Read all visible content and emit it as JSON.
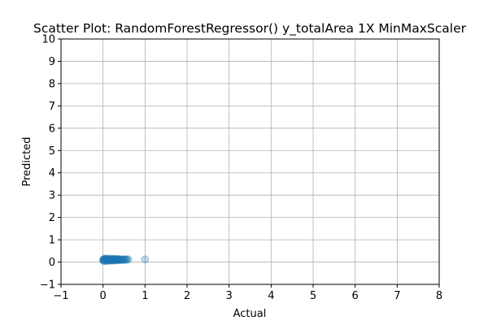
{
  "chart_data": {
    "type": "scatter",
    "title": "Scatter Plot: RandomForestRegressor() y_totalArea 1X MinMaxScaler",
    "xlabel": "Actual",
    "ylabel": "Predicted",
    "xlim": [
      -1,
      8
    ],
    "ylim": [
      -1,
      10
    ],
    "xticks": [
      -1,
      0,
      1,
      2,
      3,
      4,
      5,
      6,
      7,
      8
    ],
    "yticks": [
      -1,
      0,
      1,
      2,
      3,
      4,
      5,
      6,
      7,
      8,
      9,
      10
    ],
    "grid": true,
    "color": "#1f77b4",
    "alpha": 0.3,
    "points": [
      [
        0.0,
        0.08
      ],
      [
        0.01,
        0.1
      ],
      [
        0.02,
        0.12
      ],
      [
        0.03,
        0.09
      ],
      [
        0.04,
        0.11
      ],
      [
        0.05,
        0.1
      ],
      [
        0.06,
        0.13
      ],
      [
        0.07,
        0.09
      ],
      [
        0.08,
        0.12
      ],
      [
        0.09,
        0.1
      ],
      [
        0.1,
        0.11
      ],
      [
        0.11,
        0.09
      ],
      [
        0.12,
        0.12
      ],
      [
        0.13,
        0.1
      ],
      [
        0.14,
        0.11
      ],
      [
        0.15,
        0.09
      ],
      [
        0.16,
        0.12
      ],
      [
        0.17,
        0.1
      ],
      [
        0.18,
        0.11
      ],
      [
        0.19,
        0.1
      ],
      [
        0.2,
        0.12
      ],
      [
        0.21,
        0.09
      ],
      [
        0.22,
        0.11
      ],
      [
        0.23,
        0.1
      ],
      [
        0.24,
        0.12
      ],
      [
        0.25,
        0.1
      ],
      [
        0.26,
        0.11
      ],
      [
        0.27,
        0.09
      ],
      [
        0.28,
        0.12
      ],
      [
        0.29,
        0.1
      ],
      [
        0.3,
        0.11
      ],
      [
        0.31,
        0.1
      ],
      [
        0.32,
        0.12
      ],
      [
        0.33,
        0.1
      ],
      [
        0.34,
        0.11
      ],
      [
        0.35,
        0.1
      ],
      [
        0.36,
        0.12
      ],
      [
        0.37,
        0.1
      ],
      [
        0.38,
        0.11
      ],
      [
        0.39,
        0.1
      ],
      [
        0.4,
        0.12
      ],
      [
        0.41,
        0.1
      ],
      [
        0.42,
        0.11
      ],
      [
        0.44,
        0.1
      ],
      [
        0.46,
        0.12
      ],
      [
        0.48,
        0.11
      ],
      [
        0.5,
        0.1
      ],
      [
        0.52,
        0.12
      ],
      [
        0.54,
        0.11
      ],
      [
        0.57,
        0.11
      ],
      [
        0.6,
        0.12
      ],
      [
        1.0,
        0.12
      ],
      [
        0.02,
        0.05
      ],
      [
        0.05,
        0.15
      ],
      [
        0.08,
        0.06
      ],
      [
        0.1,
        0.16
      ],
      [
        0.14,
        0.06
      ],
      [
        0.18,
        0.15
      ],
      [
        0.22,
        0.06
      ],
      [
        0.26,
        0.15
      ],
      [
        0.3,
        0.07
      ],
      [
        0.34,
        0.14
      ],
      [
        0.03,
        0.14
      ],
      [
        0.07,
        0.05
      ]
    ]
  }
}
